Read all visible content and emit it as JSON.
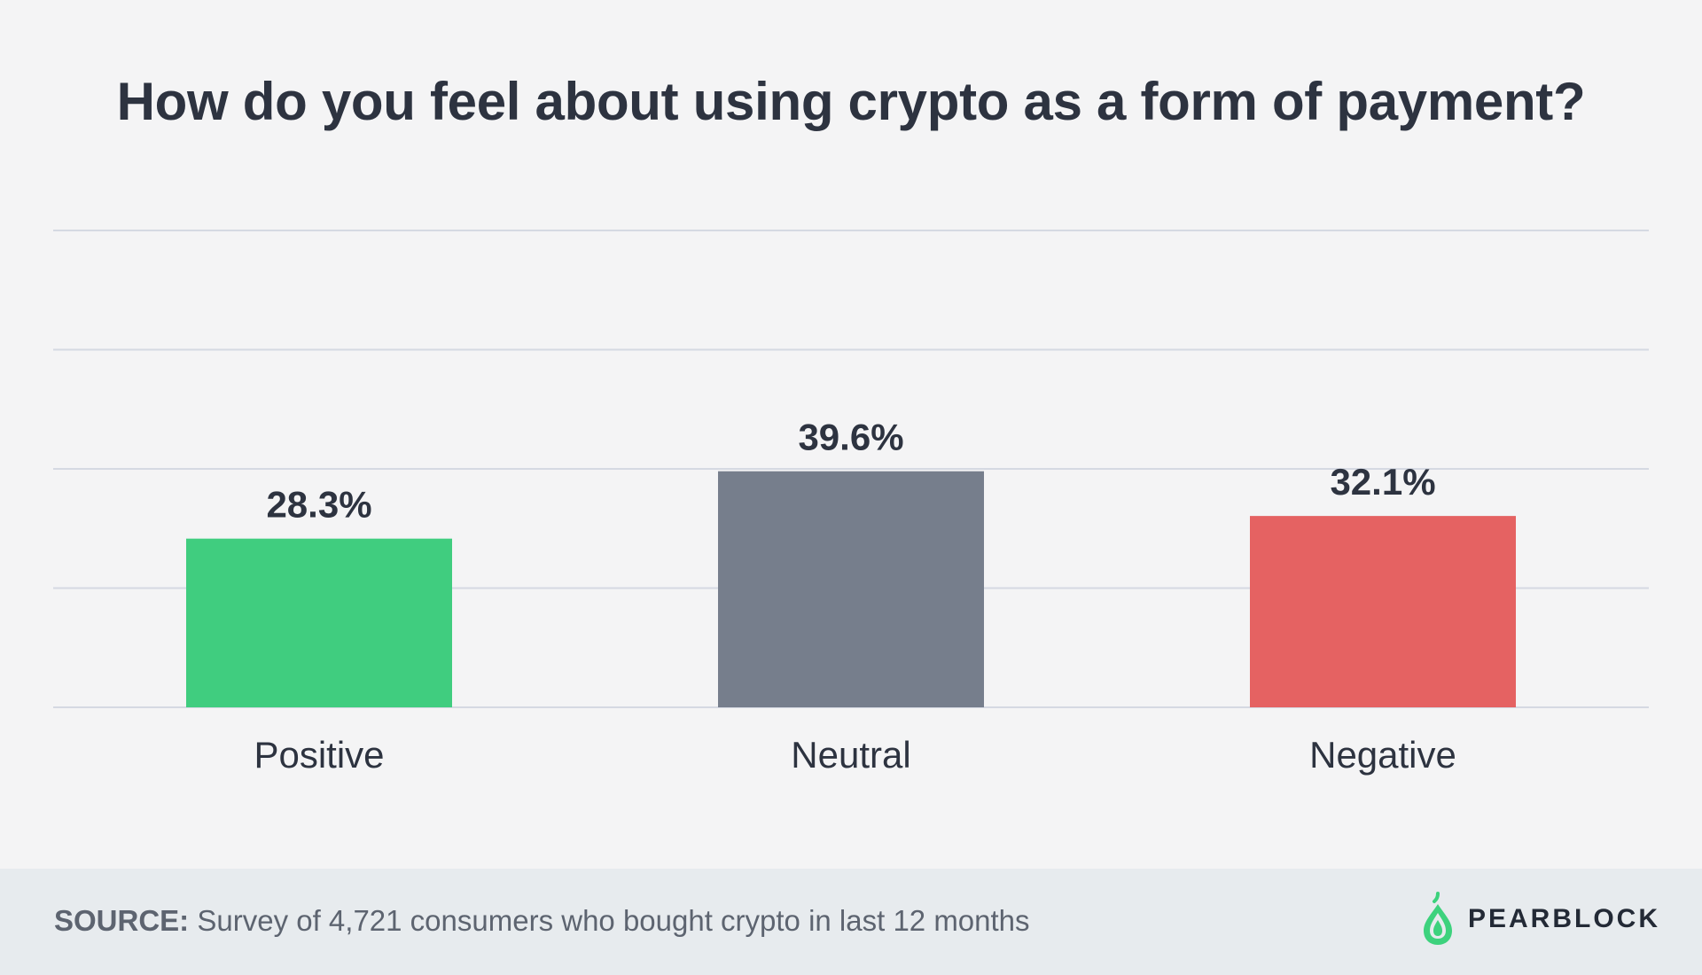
{
  "title": "How do you feel about using crypto as a form of payment?",
  "chart_data": {
    "type": "bar",
    "categories": [
      "Positive",
      "Neutral",
      "Negative"
    ],
    "values": [
      28.3,
      39.6,
      32.1
    ],
    "value_labels": [
      "28.3%",
      "39.6%",
      "32.1%"
    ],
    "colors": [
      "#40cd7f",
      "#767e8c",
      "#e56262"
    ],
    "ylim": [
      0,
      80
    ],
    "grid": true,
    "title": "How do you feel about using crypto as a form of payment?"
  },
  "footer": {
    "source_label": "SOURCE:",
    "source_text": "Survey of 4,721 consumers who bought crypto in last 12 months",
    "brand": "PEARBLOCK",
    "brand_color": "#3dd27d"
  }
}
